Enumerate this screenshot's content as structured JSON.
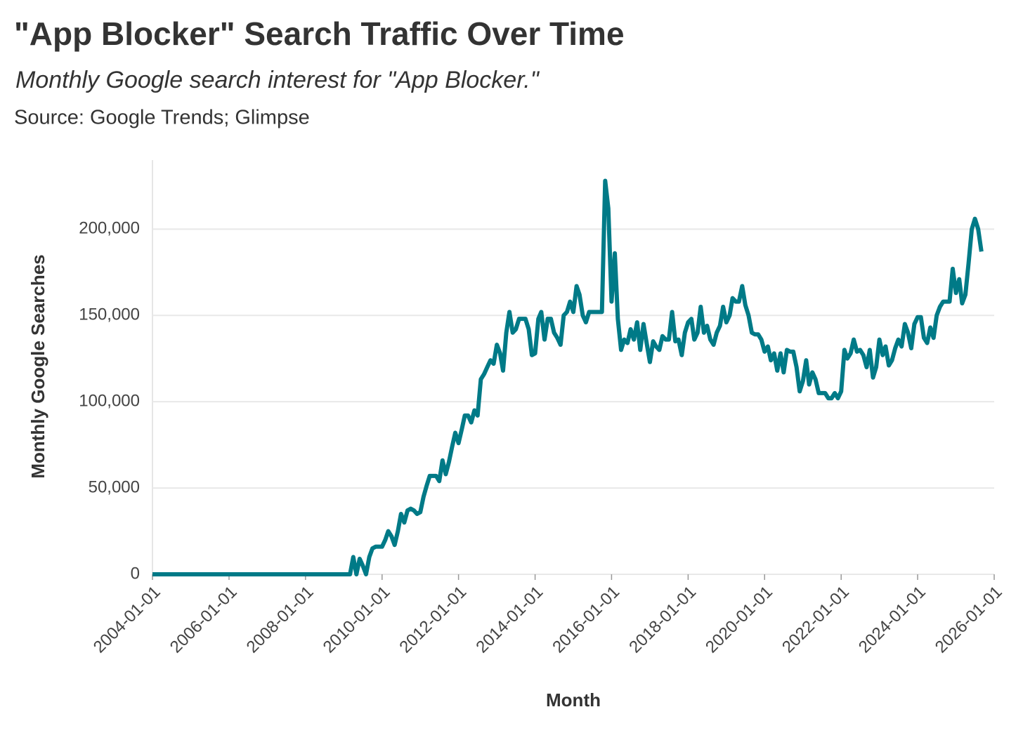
{
  "chart_data": {
    "type": "line",
    "title": "\"App Blocker\" Search Traffic Over Time",
    "subtitle": "Monthly Google search interest for \"App Blocker.\"",
    "source": "Source: Google Trends; Glimpse",
    "x_label": "Month",
    "y_label": "Monthly Google Searches",
    "xlim": [
      "2004-01-01",
      "2026-01-01"
    ],
    "xticks": [
      "2004-01-01",
      "2006-01-01",
      "2008-01-01",
      "2010-01-01",
      "2012-01-01",
      "2014-01-01",
      "2016-01-01",
      "2018-01-01",
      "2020-01-01",
      "2022-01-01",
      "2024-01-01",
      "2026-01-01"
    ],
    "ylim": [
      0,
      240000
    ],
    "yticks": [
      0,
      {
        "value": 50000,
        "label": "50,000"
      },
      {
        "value": 100000,
        "label": "100,000"
      },
      {
        "value": 150000,
        "label": "150,000"
      },
      {
        "value": 200000,
        "label": "200,000"
      }
    ],
    "grid": true,
    "x": [
      "2004-01-01",
      "2004-02-01",
      "2004-03-01",
      "2004-04-01",
      "2004-05-01",
      "2004-06-01",
      "2004-07-01",
      "2004-08-01",
      "2004-09-01",
      "2004-10-01",
      "2004-11-01",
      "2004-12-01",
      "2005-01-01",
      "2005-02-01",
      "2005-03-01",
      "2005-04-01",
      "2005-05-01",
      "2005-06-01",
      "2005-07-01",
      "2005-08-01",
      "2005-09-01",
      "2005-10-01",
      "2005-11-01",
      "2005-12-01",
      "2006-01-01",
      "2006-02-01",
      "2006-03-01",
      "2006-04-01",
      "2006-05-01",
      "2006-06-01",
      "2006-07-01",
      "2006-08-01",
      "2006-09-01",
      "2006-10-01",
      "2006-11-01",
      "2006-12-01",
      "2007-01-01",
      "2007-02-01",
      "2007-03-01",
      "2007-04-01",
      "2007-05-01",
      "2007-06-01",
      "2007-07-01",
      "2007-08-01",
      "2007-09-01",
      "2007-10-01",
      "2007-11-01",
      "2007-12-01",
      "2008-01-01",
      "2008-02-01",
      "2008-03-01",
      "2008-04-01",
      "2008-05-01",
      "2008-06-01",
      "2008-07-01",
      "2008-08-01",
      "2008-09-01",
      "2008-10-01",
      "2008-11-01",
      "2008-12-01",
      "2009-01-01",
      "2009-02-01",
      "2009-03-01",
      "2009-04-01",
      "2009-05-01",
      "2009-06-01",
      "2009-07-01",
      "2009-08-01",
      "2009-09-01",
      "2009-10-01",
      "2009-11-01",
      "2009-12-01",
      "2010-01-01",
      "2010-02-01",
      "2010-03-01",
      "2010-04-01",
      "2010-05-01",
      "2010-06-01",
      "2010-07-01",
      "2010-08-01",
      "2010-09-01",
      "2010-10-01",
      "2010-11-01",
      "2010-12-01",
      "2011-01-01",
      "2011-02-01",
      "2011-03-01",
      "2011-04-01",
      "2011-05-01",
      "2011-06-01",
      "2011-07-01",
      "2011-08-01",
      "2011-09-01",
      "2011-10-01",
      "2011-11-01",
      "2011-12-01",
      "2012-01-01",
      "2012-02-01",
      "2012-03-01",
      "2012-04-01",
      "2012-05-01",
      "2012-06-01",
      "2012-07-01",
      "2012-08-01",
      "2012-09-01",
      "2012-10-01",
      "2012-11-01",
      "2012-12-01",
      "2013-01-01",
      "2013-02-01",
      "2013-03-01",
      "2013-04-01",
      "2013-05-01",
      "2013-06-01",
      "2013-07-01",
      "2013-08-01",
      "2013-09-01",
      "2013-10-01",
      "2013-11-01",
      "2013-12-01",
      "2014-01-01",
      "2014-02-01",
      "2014-03-01",
      "2014-04-01",
      "2014-05-01",
      "2014-06-01",
      "2014-07-01",
      "2014-08-01",
      "2014-09-01",
      "2014-10-01",
      "2014-11-01",
      "2014-12-01",
      "2015-01-01",
      "2015-02-01",
      "2015-03-01",
      "2015-04-01",
      "2015-05-01",
      "2015-06-01",
      "2015-07-01",
      "2015-08-01",
      "2015-09-01",
      "2015-10-01",
      "2015-11-01",
      "2015-12-01",
      "2016-01-01",
      "2016-02-01",
      "2016-03-01",
      "2016-04-01",
      "2016-05-01",
      "2016-06-01",
      "2016-07-01",
      "2016-08-01",
      "2016-09-01",
      "2016-10-01",
      "2016-11-01",
      "2016-12-01",
      "2017-01-01",
      "2017-02-01",
      "2017-03-01",
      "2017-04-01",
      "2017-05-01",
      "2017-06-01",
      "2017-07-01",
      "2017-08-01",
      "2017-09-01",
      "2017-10-01",
      "2017-11-01",
      "2017-12-01",
      "2018-01-01",
      "2018-02-01",
      "2018-03-01",
      "2018-04-01",
      "2018-05-01",
      "2018-06-01",
      "2018-07-01",
      "2018-08-01",
      "2018-09-01",
      "2018-10-01",
      "2018-11-01",
      "2018-12-01",
      "2019-01-01",
      "2019-02-01",
      "2019-03-01",
      "2019-04-01",
      "2019-05-01",
      "2019-06-01",
      "2019-07-01",
      "2019-08-01",
      "2019-09-01",
      "2019-10-01",
      "2019-11-01",
      "2019-12-01",
      "2020-01-01",
      "2020-02-01",
      "2020-03-01",
      "2020-04-01",
      "2020-05-01",
      "2020-06-01",
      "2020-07-01",
      "2020-08-01",
      "2020-09-01",
      "2020-10-01",
      "2020-11-01",
      "2020-12-01",
      "2021-01-01",
      "2021-02-01",
      "2021-03-01",
      "2021-04-01",
      "2021-05-01",
      "2021-06-01",
      "2021-07-01",
      "2021-08-01",
      "2021-09-01",
      "2021-10-01",
      "2021-11-01",
      "2021-12-01",
      "2022-01-01",
      "2022-02-01",
      "2022-03-01",
      "2022-04-01",
      "2022-05-01",
      "2022-06-01",
      "2022-07-01",
      "2022-08-01",
      "2022-09-01",
      "2022-10-01",
      "2022-11-01",
      "2022-12-01",
      "2023-01-01",
      "2023-02-01",
      "2023-03-01",
      "2023-04-01",
      "2023-05-01",
      "2023-06-01",
      "2023-07-01",
      "2023-08-01",
      "2023-09-01",
      "2023-10-01",
      "2023-11-01",
      "2023-12-01",
      "2024-01-01",
      "2024-02-01",
      "2024-03-01",
      "2024-04-01",
      "2024-05-01",
      "2024-06-01",
      "2024-07-01",
      "2024-08-01",
      "2024-09-01",
      "2024-10-01",
      "2024-11-01",
      "2024-12-01",
      "2025-01-01",
      "2025-02-01",
      "2025-03-01",
      "2025-04-01",
      "2025-05-01",
      "2025-06-01",
      "2025-07-01",
      "2025-08-01",
      "2025-09-01"
    ],
    "series": [
      {
        "name": "Monthly Google Searches",
        "color": "#007a87",
        "values": [
          0,
          0,
          0,
          0,
          0,
          0,
          0,
          0,
          0,
          0,
          0,
          0,
          0,
          0,
          0,
          0,
          0,
          0,
          0,
          0,
          0,
          0,
          0,
          0,
          0,
          0,
          0,
          0,
          0,
          0,
          0,
          0,
          0,
          0,
          0,
          0,
          0,
          0,
          0,
          0,
          0,
          0,
          0,
          0,
          0,
          0,
          0,
          0,
          0,
          0,
          0,
          0,
          0,
          0,
          0,
          0,
          0,
          0,
          0,
          0,
          0,
          0,
          0,
          10000,
          0,
          9000,
          5000,
          0,
          10000,
          15000,
          16000,
          16000,
          16000,
          20000,
          25000,
          22000,
          17000,
          25000,
          35000,
          30000,
          37000,
          38000,
          37000,
          35000,
          36000,
          45000,
          51000,
          57000,
          57000,
          57000,
          54000,
          66000,
          58000,
          65000,
          74000,
          82000,
          76000,
          84000,
          92000,
          92000,
          88000,
          95000,
          92000,
          113000,
          116000,
          120000,
          124000,
          122000,
          133000,
          128000,
          118000,
          140000,
          152000,
          140000,
          142000,
          148000,
          148000,
          148000,
          142000,
          127000,
          128000,
          148000,
          152000,
          136000,
          148000,
          148000,
          140000,
          137000,
          133000,
          150000,
          152000,
          158000,
          152000,
          167000,
          162000,
          150000,
          146000,
          152000,
          152000,
          152000,
          152000,
          152000,
          228000,
          212000,
          158000,
          186000,
          148000,
          130000,
          136000,
          134000,
          142000,
          136000,
          146000,
          130000,
          145000,
          134000,
          123000,
          135000,
          132000,
          130000,
          138000,
          136000,
          136000,
          152000,
          135000,
          136000,
          127000,
          140000,
          146000,
          148000,
          136000,
          140000,
          155000,
          140000,
          144000,
          136000,
          133000,
          140000,
          144000,
          155000,
          146000,
          150000,
          160000,
          158000,
          158000,
          167000,
          156000,
          150000,
          140000,
          139000,
          139000,
          136000,
          129000,
          132000,
          124000,
          128000,
          118000,
          128000,
          117000,
          130000,
          129000,
          129000,
          120000,
          106000,
          112000,
          124000,
          110000,
          117000,
          113000,
          105000,
          105000,
          105000,
          102000,
          102000,
          105000,
          102000,
          106000,
          130000,
          125000,
          128000,
          136000,
          129000,
          130000,
          127000,
          120000,
          130000,
          114000,
          120000,
          136000,
          127000,
          132000,
          121000,
          124000,
          131000,
          136000,
          132000,
          145000,
          140000,
          131000,
          145000,
          149000,
          149000,
          137000,
          134000,
          143000,
          137000,
          150000,
          155000,
          158000,
          158000,
          158000,
          177000,
          163000,
          171000,
          157000,
          162000,
          180000,
          200000,
          206000,
          200000,
          187000
        ]
      }
    ]
  }
}
